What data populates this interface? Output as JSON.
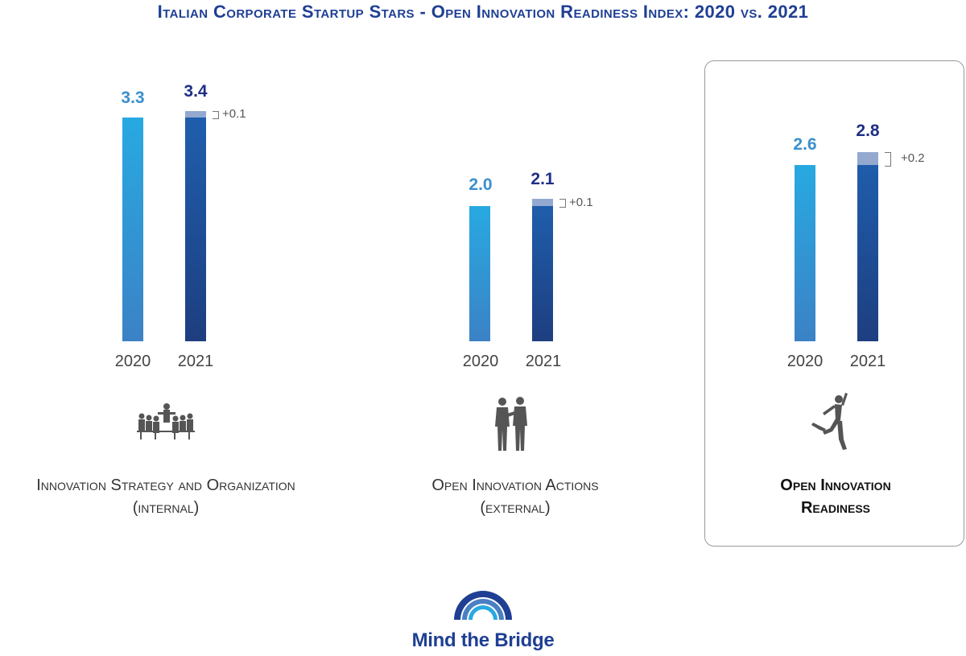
{
  "title": "Italian Corporate Startup Stars - Open Innovation Readiness Index: 2020 vs. 2021",
  "colors": {
    "title": "#1f3f94",
    "bar_2020": "#28a9e1",
    "bar_2021": "#1f5fae",
    "delta": "#93a9cf"
  },
  "chart_data": [
    {
      "type": "bar",
      "categories": [
        "2020",
        "2021"
      ],
      "values": [
        3.3,
        3.4
      ],
      "value_labels": [
        "3.3",
        "3.4"
      ],
      "delta_label": "+0.1",
      "caption_line1": "Innovation Strategy and Organization",
      "caption_line2": "(internal)",
      "icon": "meeting-group-icon",
      "highlighted": false
    },
    {
      "type": "bar",
      "categories": [
        "2020",
        "2021"
      ],
      "values": [
        2.0,
        2.1
      ],
      "value_labels": [
        "2.0",
        "2.1"
      ],
      "delta_label": "+0.1",
      "caption_line1": "Open Innovation Actions",
      "caption_line2": "(external)",
      "icon": "handshake-icon",
      "highlighted": false
    },
    {
      "type": "bar",
      "categories": [
        "2020",
        "2021"
      ],
      "values": [
        2.6,
        2.8
      ],
      "value_labels": [
        "2.6",
        "2.8"
      ],
      "delta_label": "+0.2",
      "caption_line1": "Open Innovation",
      "caption_line2": "Readiness",
      "icon": "leaping-person-icon",
      "highlighted": true
    }
  ],
  "logo": {
    "text": "Mind the Bridge",
    "icon": "bridge-arches-icon"
  }
}
